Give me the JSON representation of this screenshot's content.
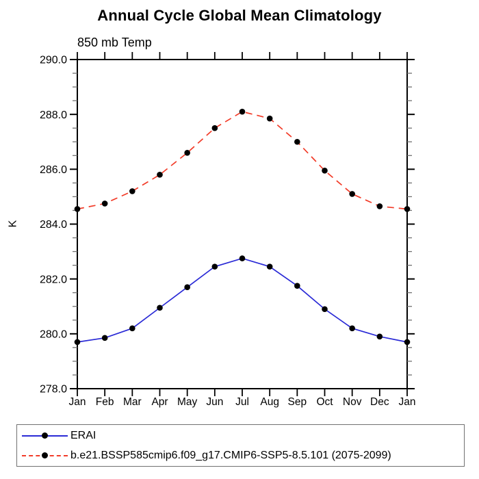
{
  "page": {
    "background": "#ffffff",
    "text_color": "#000000"
  },
  "title": "Annual Cycle Global Mean Climatology",
  "subtitle": "850 mb Temp",
  "chart_data": {
    "type": "line",
    "title": "Annual Cycle Global Mean Climatology",
    "subtitle": "850 mb Temp",
    "xlabel": "",
    "ylabel": "K",
    "ylim": [
      278.0,
      290.0
    ],
    "ytick_major": 2.0,
    "ytick_minor": 0.5,
    "ytick_labels": [
      "278.0",
      "280.0",
      "282.0",
      "284.0",
      "286.0",
      "288.0",
      "290.0"
    ],
    "categories": [
      "Jan",
      "Feb",
      "Mar",
      "Apr",
      "May",
      "Jun",
      "Jul",
      "Aug",
      "Sep",
      "Oct",
      "Nov",
      "Dec",
      "Jan"
    ],
    "grid": false,
    "legend_position": "bottom-left-box",
    "marker": {
      "shape": "filled-circle",
      "color": "#000000",
      "radius_px": 4.3
    },
    "series": [
      {
        "id": "erai",
        "name": "ERAI",
        "color": "#2a2ad6",
        "line_style": "solid",
        "values": [
          279.7,
          279.85,
          280.2,
          280.95,
          281.7,
          282.45,
          282.75,
          282.45,
          281.75,
          280.9,
          280.2,
          279.9,
          279.7
        ]
      },
      {
        "id": "model",
        "name": "b.e21.BSSP585cmip6.f09_g17.CMIP6-SSP5-8.5.101 (2075-2099)",
        "color": "#f23b28",
        "line_style": "dashed",
        "values": [
          284.55,
          284.75,
          285.2,
          285.8,
          286.6,
          287.5,
          288.1,
          287.85,
          287.0,
          285.95,
          285.1,
          284.65,
          284.55
        ]
      }
    ]
  }
}
